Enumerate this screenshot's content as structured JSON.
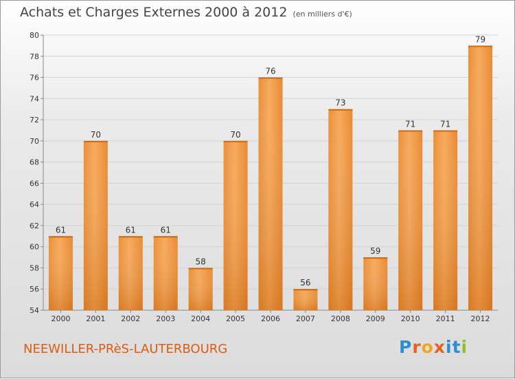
{
  "header": {
    "title": "Achats et Charges Externes 2000 à 2012",
    "subtitle": "(en milliers d'€)"
  },
  "footer": {
    "commune": "NEEWILLER-PRèS-LAUTERBOURG",
    "logo": "Proxiti"
  },
  "colors": {
    "bar": "#f0943a",
    "bar_light": "#f7b062",
    "bar_dark": "#d9741f",
    "commune_text": "#e05a10",
    "logo_letters": [
      "#2a8fd0",
      "#e8611c",
      "#f2a61b",
      "#e8611c",
      "#2a8fd0",
      "#2a8fd0",
      "#8fbf28"
    ]
  },
  "chart_data": {
    "type": "bar",
    "title": "Achats et Charges Externes 2000 à 2012",
    "subtitle": "(en milliers d'€)",
    "categories": [
      "2000",
      "2001",
      "2002",
      "2003",
      "2004",
      "2005",
      "2006",
      "2007",
      "2008",
      "2009",
      "2010",
      "2011",
      "2012"
    ],
    "values": [
      61,
      70,
      61,
      61,
      58,
      70,
      76,
      56,
      73,
      59,
      71,
      71,
      79
    ],
    "ylim": [
      54,
      80
    ],
    "yticks": [
      54,
      56,
      58,
      60,
      62,
      64,
      66,
      68,
      70,
      72,
      74,
      76,
      78,
      80
    ],
    "grid": true,
    "data_labels": true
  }
}
